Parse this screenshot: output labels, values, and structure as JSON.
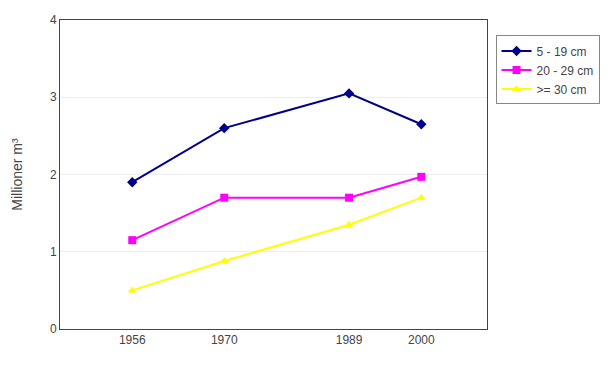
{
  "chart_data": {
    "type": "line",
    "x": [
      1956,
      1970,
      1989,
      2000
    ],
    "series": [
      {
        "name": "5 - 19 cm",
        "color": "#00008B",
        "marker": "diamond",
        "values": [
          1.9,
          2.6,
          3.05,
          2.65
        ]
      },
      {
        "name": "20 - 29 cm",
        "color": "#FF00FF",
        "marker": "square",
        "values": [
          1.15,
          1.7,
          1.7,
          1.97
        ]
      },
      {
        "name": ">= 30 cm",
        "color": "#FFFF00",
        "marker": "triangle-up",
        "values": [
          0.5,
          0.88,
          1.35,
          1.7
        ]
      }
    ],
    "ylabel": "Millioner m³",
    "xlim": [
      1945,
      2010
    ],
    "xticks": [
      1956,
      1970,
      1989,
      2000
    ],
    "ylim": [
      0,
      4
    ],
    "yticks": [
      0,
      1,
      2,
      3,
      4
    ],
    "grid": "y",
    "legend": "right"
  }
}
